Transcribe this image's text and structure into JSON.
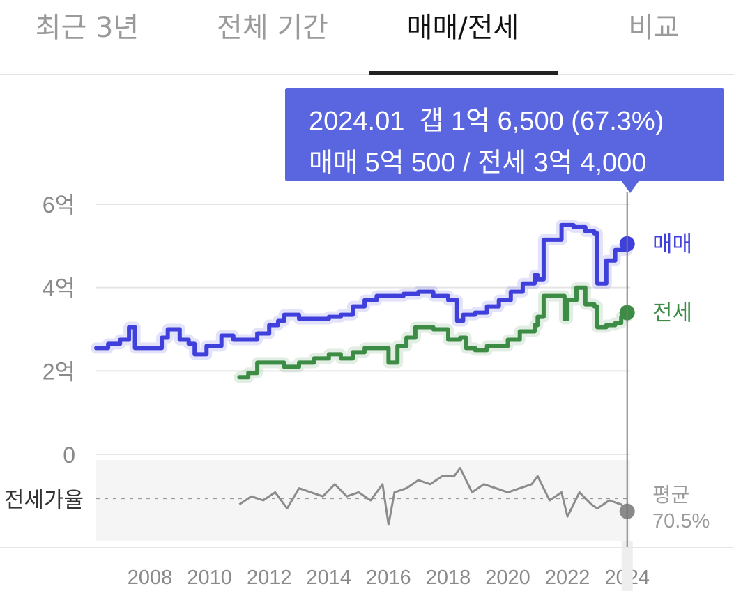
{
  "tabs": [
    {
      "label": "최근 3년",
      "active": false
    },
    {
      "label": "전체 기간",
      "active": false
    },
    {
      "label": "매매/전세",
      "active": true
    },
    {
      "label": "비교",
      "active": false
    }
  ],
  "tooltip": {
    "line1": "2024.01  갭 1억 6,500 (67.3%)",
    "line2": "매매 5억 500 / 전세 3억 4,000"
  },
  "colors": {
    "sale": "#3f3fdb",
    "jeonse": "#3c8c46",
    "ratio": "#8c8c8c",
    "tooltip": "#5966e0"
  },
  "chart_data": {
    "type": "line",
    "x_unit": "year",
    "xlim": [
      2006.2,
      2024.1
    ],
    "x_ticks": [
      "2008",
      "2010",
      "2012",
      "2014",
      "2016",
      "2018",
      "2020",
      "2022",
      "2024"
    ],
    "ylim": [
      0,
      6
    ],
    "y_ticks": [
      "0",
      "2억",
      "4억",
      "6억"
    ],
    "y_tick_values": [
      0,
      2,
      4,
      6
    ],
    "y_unit": "억",
    "series": [
      {
        "name": "매매",
        "end_label": "매매",
        "x": [
          2006.2,
          2006.6,
          2007.0,
          2007.3,
          2007.5,
          2008.0,
          2008.4,
          2008.6,
          2009.0,
          2009.3,
          2009.5,
          2009.9,
          2010.4,
          2010.8,
          2011.2,
          2011.6,
          2012.0,
          2012.3,
          2012.5,
          2013.0,
          2013.5,
          2014.0,
          2014.4,
          2014.8,
          2015.2,
          2015.6,
          2016.0,
          2016.5,
          2017.0,
          2017.5,
          2018.0,
          2018.3,
          2018.5,
          2018.9,
          2019.3,
          2019.7,
          2020.1,
          2020.5,
          2020.9,
          2021.0,
          2021.2,
          2021.4,
          2021.8,
          2022.2,
          2022.6,
          2022.9,
          2023.0,
          2023.3,
          2023.6,
          2024.0
        ],
        "values": [
          2.55,
          2.65,
          2.75,
          3.05,
          2.55,
          2.55,
          2.8,
          3.0,
          2.75,
          2.65,
          2.4,
          2.6,
          2.85,
          2.75,
          2.75,
          2.9,
          3.1,
          3.2,
          3.35,
          3.25,
          3.25,
          3.3,
          3.35,
          3.55,
          3.7,
          3.8,
          3.8,
          3.85,
          3.9,
          3.8,
          3.7,
          3.2,
          3.35,
          3.4,
          3.55,
          3.7,
          3.9,
          4.1,
          4.3,
          4.2,
          5.15,
          5.15,
          5.5,
          5.45,
          5.35,
          5.3,
          4.1,
          4.65,
          4.9,
          5.05
        ]
      },
      {
        "name": "전세",
        "end_label": "전세",
        "x": [
          2011.0,
          2011.3,
          2011.6,
          2012.0,
          2012.5,
          2013.0,
          2013.5,
          2014.0,
          2014.4,
          2014.8,
          2015.2,
          2015.6,
          2016.0,
          2016.3,
          2016.6,
          2016.9,
          2017.2,
          2017.5,
          2018.0,
          2018.4,
          2018.6,
          2018.9,
          2019.3,
          2019.7,
          2020.0,
          2020.4,
          2020.9,
          2021.0,
          2021.2,
          2021.6,
          2021.9,
          2022.0,
          2022.3,
          2022.6,
          2022.9,
          2023.0,
          2023.3,
          2023.6,
          2023.8,
          2024.0
        ],
        "values": [
          1.85,
          1.95,
          2.2,
          2.2,
          2.1,
          2.2,
          2.3,
          2.4,
          2.3,
          2.45,
          2.55,
          2.55,
          2.2,
          2.6,
          2.8,
          3.05,
          3.05,
          3.0,
          2.75,
          2.8,
          2.55,
          2.5,
          2.6,
          2.6,
          2.75,
          2.95,
          3.1,
          3.3,
          3.8,
          3.8,
          3.25,
          3.7,
          4.0,
          3.6,
          3.55,
          3.05,
          3.1,
          3.15,
          3.3,
          3.4
        ]
      }
    ],
    "ratio": {
      "label": "전세가율",
      "average_label": "평균",
      "average": "70.5%",
      "average_value": 70.5,
      "x": [
        2011.0,
        2011.4,
        2011.8,
        2012.2,
        2012.6,
        2013.0,
        2013.4,
        2013.8,
        2014.2,
        2014.6,
        2015.0,
        2015.4,
        2015.8,
        2016.0,
        2016.2,
        2016.6,
        2017.0,
        2017.4,
        2017.8,
        2018.2,
        2018.4,
        2018.8,
        2019.2,
        2019.6,
        2020.0,
        2020.4,
        2020.8,
        2021.0,
        2021.4,
        2021.8,
        2022.0,
        2022.4,
        2022.8,
        2023.0,
        2023.4,
        2023.8,
        2024.0
      ],
      "values": [
        69,
        71,
        70,
        72,
        68,
        73,
        72,
        71,
        74,
        71,
        72,
        70,
        74,
        64,
        72,
        73,
        75,
        74,
        76,
        76,
        78,
        72,
        74,
        73,
        72,
        73,
        74,
        76,
        70,
        72,
        66,
        72,
        69,
        68,
        70,
        69,
        67.3
      ]
    },
    "cursor": {
      "x": 2024.0,
      "label": "2024.01"
    },
    "grid": "horizontal"
  }
}
